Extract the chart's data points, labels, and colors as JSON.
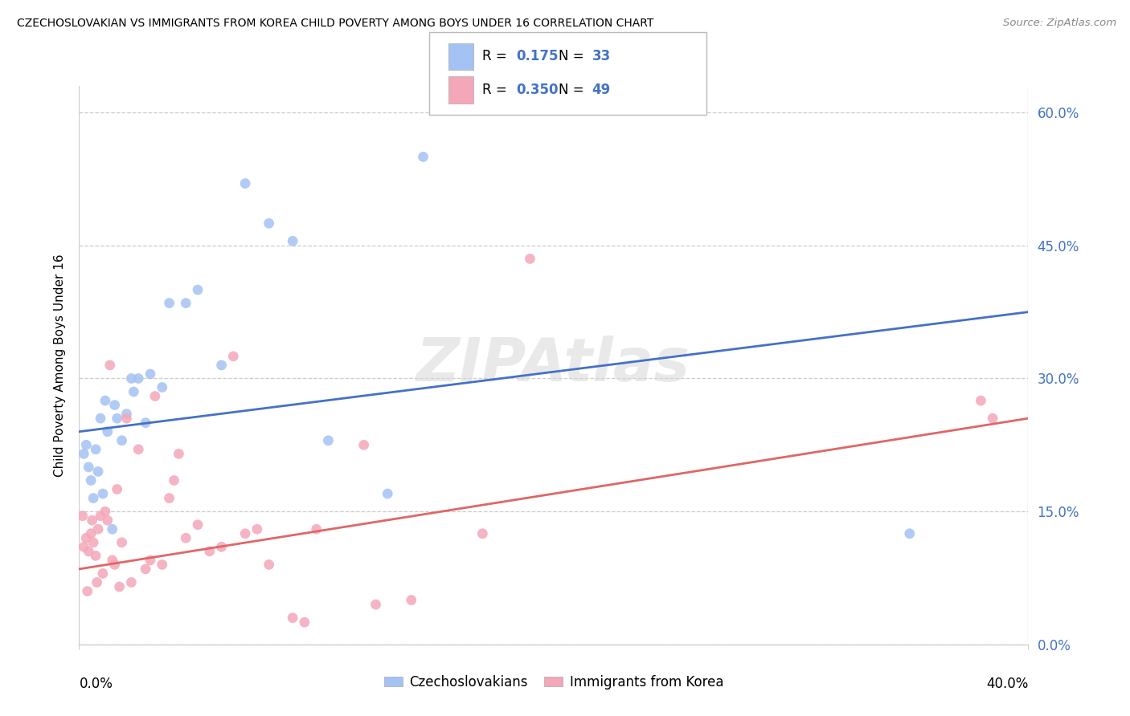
{
  "title": "CZECHOSLOVAKIAN VS IMMIGRANTS FROM KOREA CHILD POVERTY AMONG BOYS UNDER 16 CORRELATION CHART",
  "source": "Source: ZipAtlas.com",
  "ylabel": "Child Poverty Among Boys Under 16",
  "ytick_labels": [
    "0.0%",
    "15.0%",
    "30.0%",
    "45.0%",
    "60.0%"
  ],
  "ytick_vals": [
    0.0,
    15.0,
    30.0,
    45.0,
    60.0
  ],
  "xtick_labels": [
    "0.0%",
    "40.0%"
  ],
  "xtick_vals": [
    0.0,
    40.0
  ],
  "xlim": [
    0.0,
    40.0
  ],
  "ylim": [
    0.0,
    63.0
  ],
  "blue_color": "#a4c2f4",
  "pink_color": "#f4a7b9",
  "line_blue": "#4472c4",
  "line_pink": "#e06666",
  "text_blue": "#4472c4",
  "grid_color": "#cccccc",
  "watermark_color": "#d8d8d8",
  "blue_label": "Czechoslovakians",
  "pink_label": "Immigrants from Korea",
  "blue_r": "0.175",
  "blue_n": "33",
  "pink_r": "0.350",
  "pink_n": "49",
  "blue_scatter_x": [
    0.4,
    0.5,
    0.7,
    1.0,
    1.2,
    1.5,
    1.8,
    2.0,
    2.3,
    2.5,
    2.8,
    3.0,
    3.5,
    0.3,
    0.6,
    0.9,
    1.1,
    1.6,
    2.2,
    3.8,
    5.0,
    6.0,
    7.0,
    8.0,
    9.0,
    10.5,
    13.0,
    14.5,
    0.2,
    0.8,
    1.4,
    4.5,
    35.0
  ],
  "blue_scatter_y": [
    20.0,
    18.5,
    22.0,
    17.0,
    24.0,
    27.0,
    23.0,
    26.0,
    28.5,
    30.0,
    25.0,
    30.5,
    29.0,
    22.5,
    16.5,
    25.5,
    27.5,
    25.5,
    30.0,
    38.5,
    40.0,
    31.5,
    52.0,
    47.5,
    45.5,
    23.0,
    17.0,
    55.0,
    21.5,
    19.5,
    13.0,
    38.5,
    12.5
  ],
  "pink_scatter_x": [
    0.2,
    0.3,
    0.4,
    0.5,
    0.6,
    0.7,
    0.8,
    0.9,
    1.0,
    1.1,
    1.2,
    1.4,
    1.5,
    1.6,
    1.7,
    1.8,
    2.0,
    2.2,
    2.5,
    2.8,
    3.0,
    3.2,
    3.5,
    3.8,
    4.0,
    4.5,
    5.0,
    5.5,
    6.0,
    6.5,
    7.0,
    7.5,
    8.0,
    9.0,
    9.5,
    10.0,
    12.0,
    12.5,
    14.0,
    17.0,
    19.0,
    0.15,
    0.35,
    0.55,
    0.75,
    1.3,
    4.2,
    38.0,
    38.5
  ],
  "pink_scatter_y": [
    11.0,
    12.0,
    10.5,
    12.5,
    11.5,
    10.0,
    13.0,
    14.5,
    8.0,
    15.0,
    14.0,
    9.5,
    9.0,
    17.5,
    6.5,
    11.5,
    25.5,
    7.0,
    22.0,
    8.5,
    9.5,
    28.0,
    9.0,
    16.5,
    18.5,
    12.0,
    13.5,
    10.5,
    11.0,
    32.5,
    12.5,
    13.0,
    9.0,
    3.0,
    2.5,
    13.0,
    22.5,
    4.5,
    5.0,
    12.5,
    43.5,
    14.5,
    6.0,
    14.0,
    7.0,
    31.5,
    21.5,
    27.5,
    25.5
  ],
  "blue_line_x": [
    0.0,
    40.0
  ],
  "blue_line_y": [
    24.0,
    37.5
  ],
  "pink_line_x": [
    0.0,
    40.0
  ],
  "pink_line_y": [
    8.5,
    25.5
  ]
}
